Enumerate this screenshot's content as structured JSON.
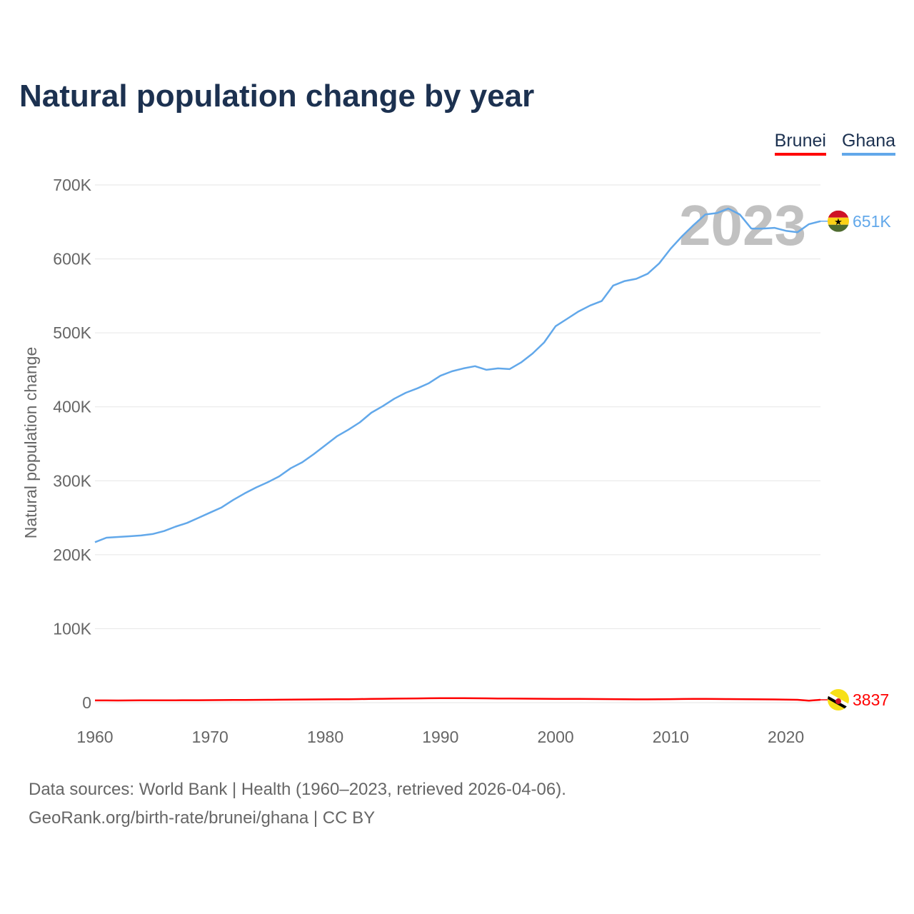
{
  "chart_data": {
    "type": "line",
    "title": "Natural population change by year",
    "xlabel": "",
    "ylabel": "Natural population change",
    "xlim": [
      1960,
      2023
    ],
    "ylim": [
      0,
      700000
    ],
    "grid": true,
    "legend_placement": "top-right",
    "year_watermark": "2023",
    "x_ticks": [
      "1960",
      "1970",
      "1980",
      "1990",
      "2000",
      "2010",
      "2020"
    ],
    "x_tick_values": [
      1960,
      1970,
      1980,
      1990,
      2000,
      2010,
      2020
    ],
    "y_ticks": [
      "0",
      "100K",
      "200K",
      "300K",
      "400K",
      "500K",
      "600K",
      "700K"
    ],
    "y_tick_values": [
      0,
      100000,
      200000,
      300000,
      400000,
      500000,
      600000,
      700000
    ],
    "x": [
      1960,
      1961,
      1962,
      1963,
      1964,
      1965,
      1966,
      1967,
      1968,
      1969,
      1970,
      1971,
      1972,
      1973,
      1974,
      1975,
      1976,
      1977,
      1978,
      1979,
      1980,
      1981,
      1982,
      1983,
      1984,
      1985,
      1986,
      1987,
      1988,
      1989,
      1990,
      1991,
      1992,
      1993,
      1994,
      1995,
      1996,
      1997,
      1998,
      1999,
      2000,
      2001,
      2002,
      2003,
      2004,
      2005,
      2006,
      2007,
      2008,
      2009,
      2010,
      2011,
      2012,
      2013,
      2014,
      2015,
      2016,
      2017,
      2018,
      2019,
      2020,
      2021,
      2022,
      2023
    ],
    "series": [
      {
        "name": "Brunei",
        "color": "#ff0000",
        "end_label": "3837",
        "values": [
          3000,
          3000,
          2900,
          3000,
          3100,
          3100,
          3100,
          3200,
          3300,
          3300,
          3400,
          3500,
          3600,
          3700,
          3800,
          3900,
          4000,
          4100,
          4200,
          4300,
          4400,
          4500,
          4600,
          4800,
          5000,
          5200,
          5400,
          5600,
          5700,
          5900,
          6000,
          6000,
          6000,
          5900,
          5800,
          5600,
          5500,
          5400,
          5300,
          5200,
          5100,
          5100,
          5000,
          4900,
          4800,
          4700,
          4500,
          4400,
          4400,
          4500,
          4700,
          4900,
          5000,
          5000,
          4900,
          4800,
          4700,
          4500,
          4400,
          4300,
          4100,
          3900,
          2600,
          3837
        ]
      },
      {
        "name": "Ghana",
        "color": "#62a8ea",
        "end_label": "651K",
        "values": [
          217000,
          223000,
          224000,
          225000,
          226000,
          228000,
          232000,
          238000,
          243000,
          250000,
          257000,
          264000,
          274000,
          283000,
          291000,
          298000,
          306000,
          317000,
          325000,
          336000,
          348000,
          360000,
          369000,
          379000,
          392000,
          401000,
          411000,
          419000,
          425000,
          432000,
          442000,
          448000,
          452000,
          455000,
          450000,
          452000,
          451000,
          460000,
          472000,
          487000,
          509000,
          519000,
          529000,
          537000,
          543000,
          564000,
          570000,
          573000,
          580000,
          594000,
          614000,
          631000,
          646000,
          660000,
          662000,
          668000,
          660000,
          641000,
          641000,
          642000,
          638000,
          636000,
          647000,
          651000
        ]
      }
    ]
  },
  "footer": {
    "line1": "Data sources: World Bank | Health (1960–2023, retrieved 2026-04-06).",
    "line2": "GeoRank.org/birth-rate/brunei/ghana | CC BY"
  }
}
